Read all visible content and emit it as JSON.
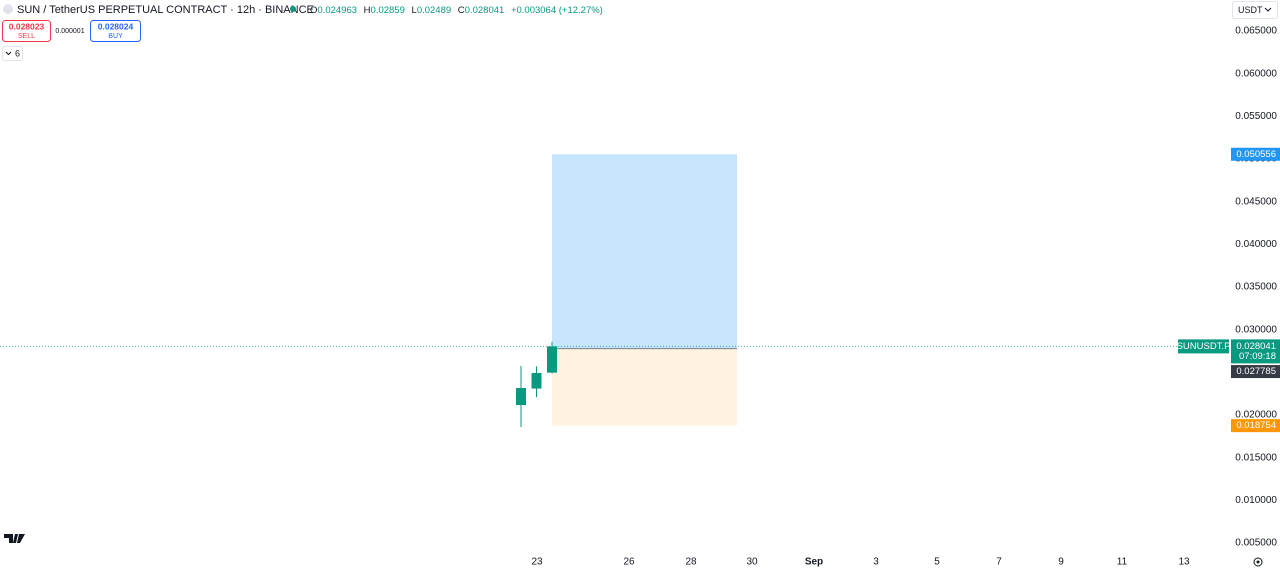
{
  "header": {
    "symbol": "SUN / TetherUS PERPETUAL CONTRACT · 12h · BINANCE",
    "ohlc_labels": [
      "O",
      "H",
      "L",
      "C"
    ],
    "change": "+0.003064 (+12.27%)",
    "sell_price": "0.028023",
    "sell": "SELL",
    "spread": "0.000001",
    "buy_price": "0.028024",
    "buy": "BUY",
    "indicators": "6",
    "currency": "USDT"
  },
  "chart_data": {
    "type": "candlestick",
    "color": "#089981",
    "open": [
      0.02117,
      0.0231,
      0.024963
    ],
    "high": [
      0.02574,
      0.0257,
      0.02859
    ],
    "low": [
      0.0186,
      0.0221,
      0.02489
    ],
    "close": [
      0.02316,
      0.02492,
      0.028041
    ],
    "ylim": [
      0.005,
      0.065
    ],
    "yticks": [
      {
        "value": 0.005,
        "label": "0.005000"
      },
      {
        "value": 0.01,
        "label": "0.010000"
      },
      {
        "value": 0.015,
        "label": "0.015000"
      },
      {
        "value": 0.02,
        "label": "0.020000"
      },
      {
        "value": 0.025,
        "label": "0.025000"
      },
      {
        "value": 0.03,
        "label": "0.030000"
      },
      {
        "value": 0.035,
        "label": "0.035000"
      },
      {
        "value": 0.04,
        "label": "0.040000"
      },
      {
        "value": 0.045,
        "label": "0.045000"
      },
      {
        "value": 0.05,
        "label": "0.050000"
      },
      {
        "value": 0.055,
        "label": "0.055000"
      },
      {
        "value": 0.06,
        "label": "0.060000"
      },
      {
        "value": 0.065,
        "label": "0.065000"
      }
    ],
    "x_labels": [
      "23",
      "26",
      "28",
      "30",
      "Sep",
      "3",
      "5",
      "7",
      "9",
      "11",
      "13"
    ],
    "position": {
      "target": 0.050556,
      "entry": 0.027785,
      "stop": 0.018754
    },
    "last_price": 0.028041,
    "symbol_label": "SUNUSDT.P",
    "countdown": "07:09:18"
  }
}
